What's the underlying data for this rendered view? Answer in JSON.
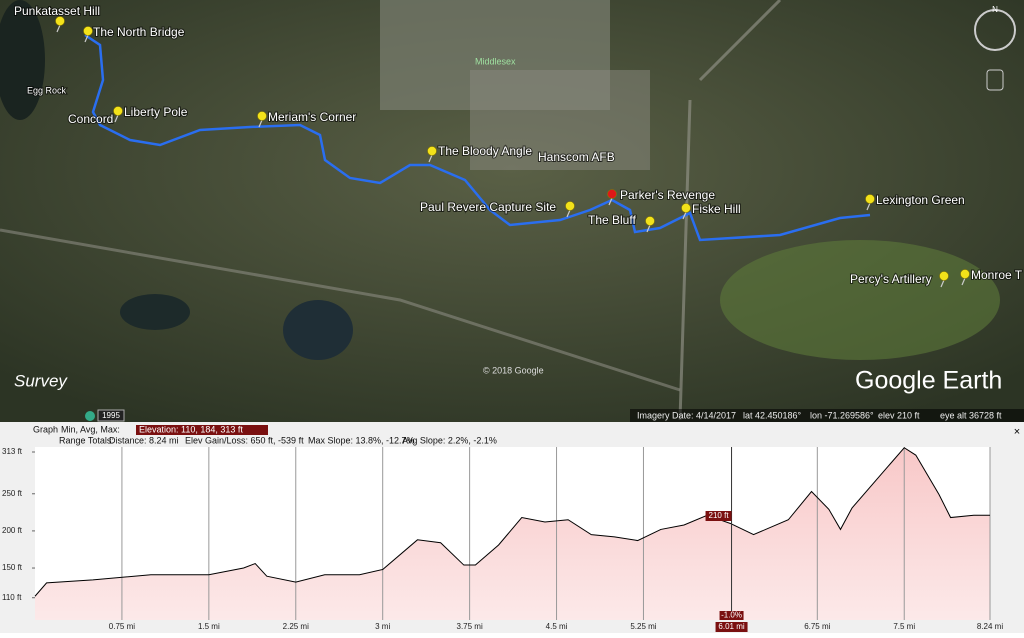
{
  "map": {
    "placemarks": [
      "Punkatasset Hill",
      "The North Bridge",
      "Liberty Pole",
      "Meriam's Corner",
      "The Bloody Angle",
      "Paul Revere Capture Site",
      "Parker's Revenge",
      "The Bluff",
      "Fiske Hill",
      "Lexington Green",
      "Percy's Artillery",
      "Monroe T"
    ],
    "places": [
      "Concord",
      "Egg Rock",
      "Middlesex",
      "Hanscom AFB"
    ],
    "copyright": "© 2018 Google",
    "survey": "Survey",
    "logo": "Google Earth",
    "year": "1995",
    "compass": "N"
  },
  "status_bar": {
    "imagery_date": "Imagery Date: 4/14/2017",
    "lat": "lat   42.450186°",
    "lon": "lon  -71.269586°",
    "elev": "elev   210 ft",
    "eye_alt": "eye alt  36728 ft"
  },
  "profile_header": {
    "graph": "Graph",
    "min_avg_max": "Min, Avg, Max:",
    "elevation": "Elevation: 110, 184, 313 ft",
    "range_totals": "Range Totals:",
    "distance": "Distance: 8.24 mi",
    "gain_loss": "Elev Gain/Loss: 650 ft, -539 ft",
    "max_slope": "Max Slope: 13.8%, -12.7%",
    "avg_slope": "Avg Slope: 2.2%, -2.1%"
  },
  "chart_data": {
    "type": "area",
    "x": [
      0,
      0.1,
      0.5,
      1.0,
      1.5,
      1.8,
      1.9,
      2.0,
      2.25,
      2.5,
      2.8,
      3.0,
      3.3,
      3.5,
      3.7,
      3.8,
      4.0,
      4.2,
      4.4,
      4.6,
      4.8,
      5.0,
      5.2,
      5.4,
      5.6,
      5.8,
      6.0,
      6.2,
      6.5,
      6.7,
      6.85,
      6.95,
      7.05,
      7.3,
      7.5,
      7.6,
      7.8,
      7.9,
      8.1,
      8.24
    ],
    "values": [
      112,
      130,
      134,
      141,
      141,
      150,
      156,
      139,
      131,
      141,
      141,
      148,
      188,
      184,
      154,
      154,
      181,
      218,
      212,
      215,
      195,
      192,
      187,
      202,
      208,
      221,
      210,
      195,
      215,
      253,
      229,
      202,
      231,
      276,
      312,
      302,
      249,
      218,
      221,
      221
    ],
    "color": "#000000",
    "xlim": [
      0,
      8.24
    ],
    "ylim": [
      80,
      313
    ],
    "xticks": [
      {
        "value": 0.75,
        "label": "0.75 mi"
      },
      {
        "value": 1.5,
        "label": "1.5 mi"
      },
      {
        "value": 2.25,
        "label": "2.25 mi"
      },
      {
        "value": 3,
        "label": "3 mi"
      },
      {
        "value": 3.75,
        "label": "3.75 mi"
      },
      {
        "value": 4.5,
        "label": "4.5 mi"
      },
      {
        "value": 5.25,
        "label": "5.25 mi"
      },
      {
        "value": 6.75,
        "label": "6.75 mi"
      },
      {
        "value": 7.5,
        "label": "7.5 mi"
      },
      {
        "value": 8.24,
        "label": "8.24 mi"
      }
    ],
    "yticks": [
      {
        "value": 110,
        "label": "110 ft"
      },
      {
        "value": 150,
        "label": "150 ft"
      },
      {
        "value": 200,
        "label": "200 ft"
      },
      {
        "value": 250,
        "label": "250 ft"
      },
      {
        "value": 313,
        "label": "313 ft"
      }
    ],
    "grid": true,
    "cursor": {
      "x": 6.01,
      "label": "6.01 mi",
      "value_label": "210 ft",
      "slope_label": "-1.0%"
    }
  }
}
